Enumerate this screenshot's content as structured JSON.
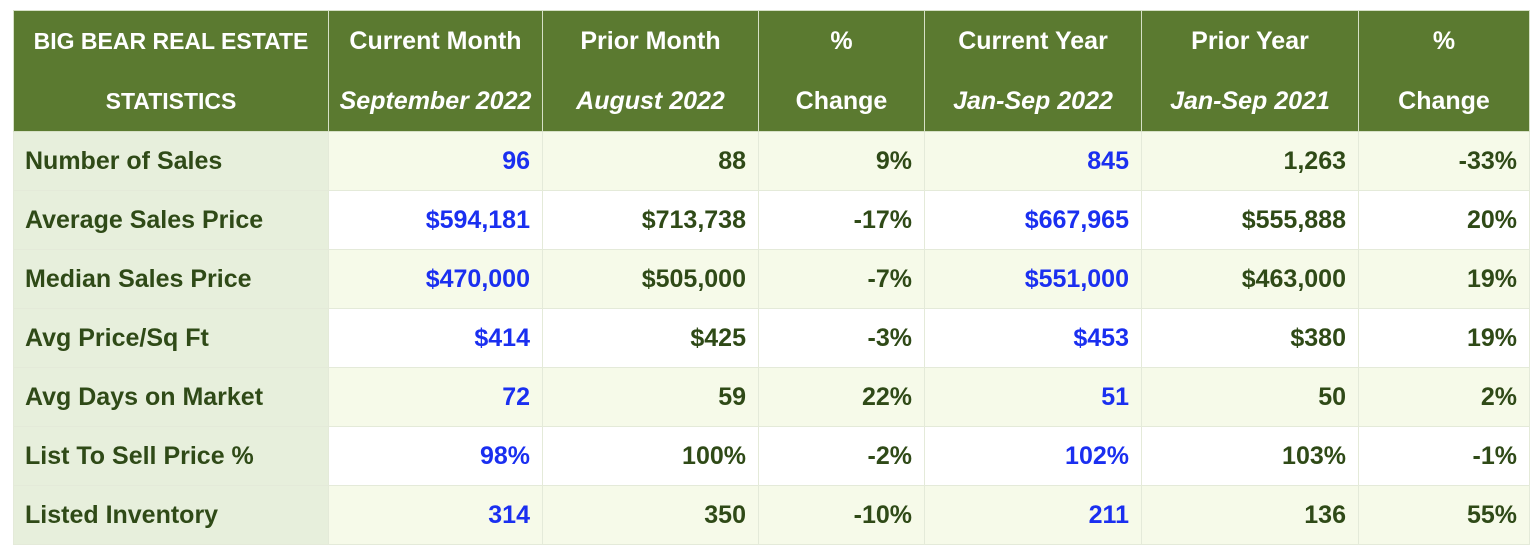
{
  "chart_data": {
    "type": "table",
    "header": [
      {
        "line1": "BIG BEAR REAL ESTATE",
        "line2": "STATISTICS"
      },
      {
        "line1": "Current Month",
        "line2": "September 2022"
      },
      {
        "line1": "Prior Month",
        "line2": "August 2022"
      },
      {
        "line1": "%",
        "line2": "Change"
      },
      {
        "line1": "Current Year",
        "line2": "Jan-Sep 2022"
      },
      {
        "line1": "Prior Year",
        "line2": "Jan-Sep 2021"
      },
      {
        "line1": "%",
        "line2": "Change"
      }
    ],
    "rows": [
      {
        "label": "Number of Sales",
        "values": [
          "96",
          "88",
          "9%",
          "845",
          "1,263",
          "-33%"
        ]
      },
      {
        "label": "Average Sales Price",
        "values": [
          "$594,181",
          "$713,738",
          "-17%",
          "$667,965",
          "$555,888",
          "20%"
        ]
      },
      {
        "label": "Median Sales Price",
        "values": [
          "$470,000",
          "$505,000",
          "-7%",
          "$551,000",
          "$463,000",
          "19%"
        ]
      },
      {
        "label": "Avg Price/Sq Ft",
        "values": [
          "$414",
          "$425",
          "-3%",
          "$453",
          "$380",
          "19%"
        ]
      },
      {
        "label": "Avg Days on Market",
        "values": [
          "72",
          "59",
          "22%",
          "51",
          "50",
          "2%"
        ]
      },
      {
        "label": "List To Sell Price %",
        "values": [
          "98%",
          "100%",
          "-2%",
          "102%",
          "103%",
          "-1%"
        ]
      },
      {
        "label": "Listed Inventory",
        "values": [
          "314",
          "350",
          "-10%",
          "211",
          "136",
          "55%"
        ]
      }
    ],
    "colors": {
      "header_bg": "#5b7a30",
      "label_col_bg": "#e7efdc",
      "band_bg": "#f6fae9",
      "text": "#2f4a17",
      "highlight_text": "#1a2ff0"
    }
  }
}
